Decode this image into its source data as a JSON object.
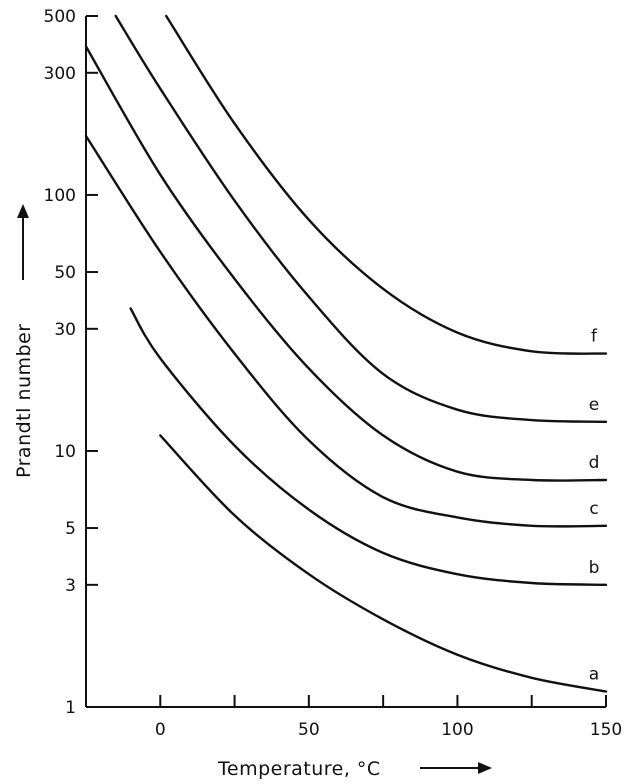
{
  "chart_data": {
    "type": "line",
    "title": "",
    "xlabel": "Temperature, °C",
    "ylabel": "Prandtl number",
    "xlim": [
      -25,
      150
    ],
    "ylim": [
      1,
      500
    ],
    "yscale": "log",
    "grid": false,
    "x_ticks": [
      0,
      50,
      100,
      150
    ],
    "x_minor_ticks": [
      25,
      75,
      125
    ],
    "y_ticks": [
      1,
      3,
      5,
      10,
      30,
      50,
      100,
      300,
      500
    ],
    "series": [
      {
        "name": "a",
        "x": [
          0,
          25,
          50,
          75,
          100,
          125,
          150
        ],
        "values": [
          11.5,
          5.6,
          3.3,
          2.2,
          1.6,
          1.3,
          1.15
        ]
      },
      {
        "name": "b",
        "x": [
          -10,
          0,
          25,
          50,
          75,
          100,
          125,
          150
        ],
        "values": [
          36,
          23,
          10.5,
          5.9,
          4.0,
          3.3,
          3.05,
          3.0
        ]
      },
      {
        "name": "c",
        "x": [
          -25,
          0,
          25,
          50,
          75,
          100,
          125,
          150
        ],
        "values": [
          170,
          60,
          24,
          11,
          6.6,
          5.5,
          5.1,
          5.1
        ]
      },
      {
        "name": "d",
        "x": [
          -25,
          0,
          25,
          50,
          75,
          100,
          125,
          150
        ],
        "values": [
          380,
          120,
          47,
          21,
          11.5,
          8.3,
          7.7,
          7.7
        ]
      },
      {
        "name": "e",
        "x": [
          -15,
          0,
          25,
          50,
          75,
          100,
          125,
          150
        ],
        "values": [
          500,
          260,
          95,
          40,
          20,
          14.5,
          13.2,
          13
        ]
      },
      {
        "name": "f",
        "x": [
          2,
          25,
          50,
          75,
          100,
          125,
          150
        ],
        "values": [
          500,
          190,
          80,
          43,
          29,
          24.5,
          24
        ]
      }
    ]
  }
}
